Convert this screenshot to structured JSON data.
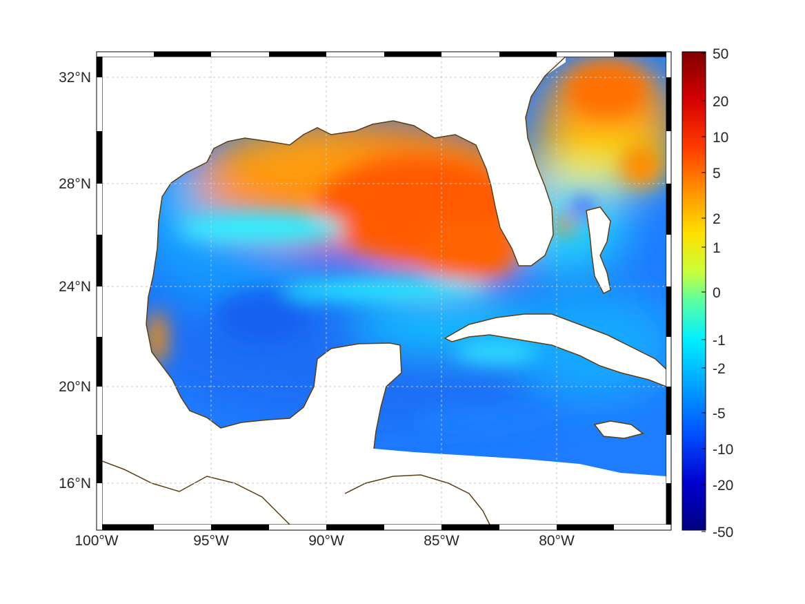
{
  "map": {
    "lat_labels": [
      "32°N",
      "28°N",
      "24°N",
      "20°N",
      "16°N"
    ],
    "lon_labels": [
      "100°W",
      "95°W",
      "90°W",
      "85°W",
      "80°W"
    ]
  },
  "colorbar": {
    "tick_labels": [
      "50",
      "20",
      "10",
      "5",
      "2",
      "1",
      "0",
      "-1",
      "-2",
      "-5",
      "-10",
      "-20",
      "-50"
    ]
  },
  "colors": {
    "coast": "#5c3d10",
    "land": "#ffffff",
    "grid": "#c8c8c8",
    "frame_dark": "#000000",
    "frame_light": "#ffffff"
  }
}
